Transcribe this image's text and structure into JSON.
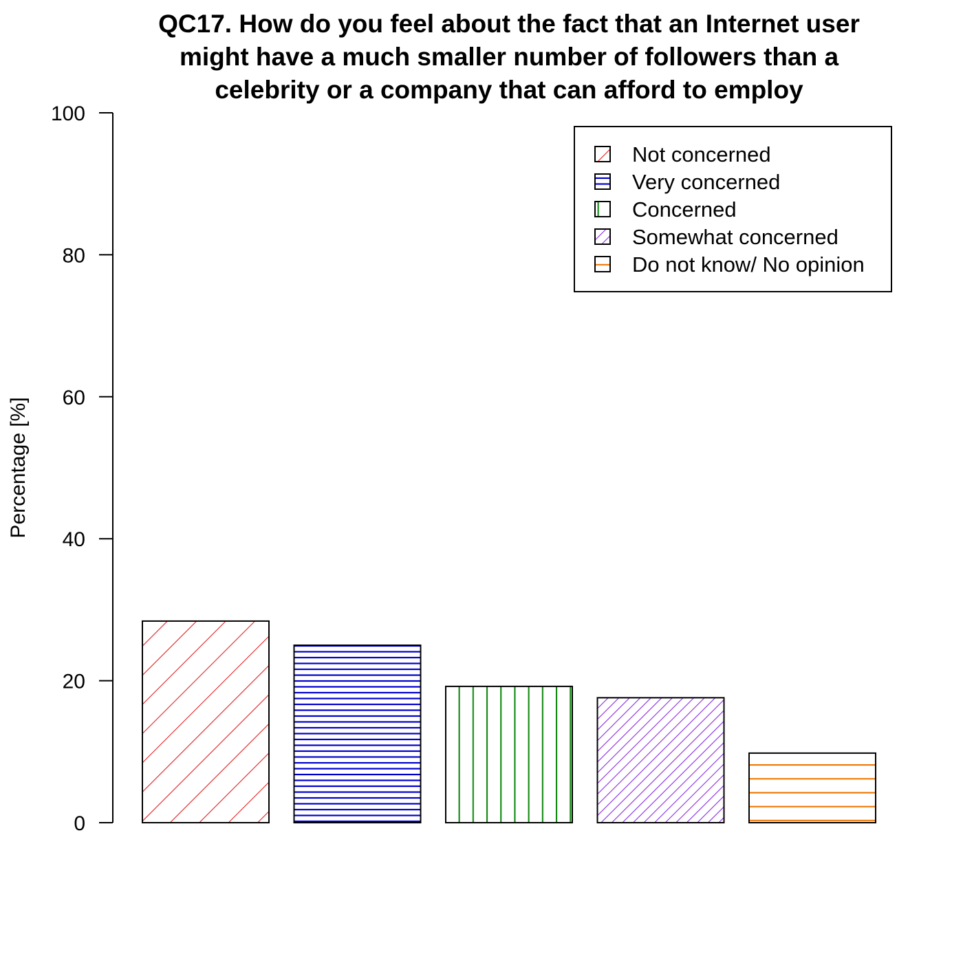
{
  "chart_data": {
    "type": "bar",
    "title_lines": [
      "QC17. How do you feel about the fact that an Internet user",
      "might have a much smaller number of followers than a",
      "celebrity or a company that can afford to employ"
    ],
    "xlabel": "",
    "ylabel": "Percentage [%]",
    "ylim": [
      0,
      100
    ],
    "yticks": [
      "0",
      "20",
      "40",
      "60",
      "80",
      "100"
    ],
    "grid": false,
    "legend_position": "top-right",
    "categories": [
      "Not concerned",
      "Very  concerned",
      "Concerned",
      "Somewhat concerned",
      "Do not know/ No opinion"
    ],
    "values": [
      28.4,
      25.0,
      19.2,
      17.6,
      9.8
    ],
    "colors": [
      "#e02020",
      "#0000cc",
      "#118811",
      "#8a2be2",
      "#ee7600"
    ],
    "patterns": [
      "diagonal-wide",
      "horizontal-dense",
      "vertical",
      "diagonal-dense",
      "horizontal-wide"
    ]
  }
}
